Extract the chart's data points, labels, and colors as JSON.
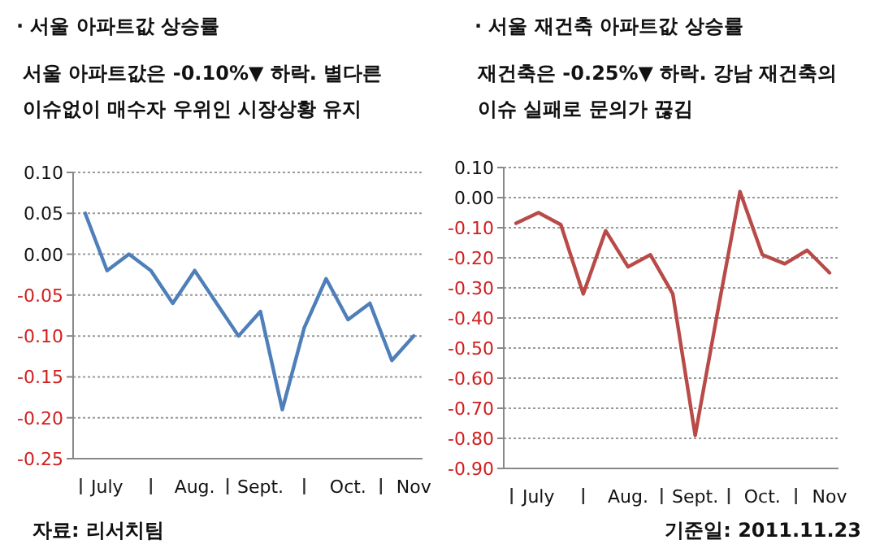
{
  "chart_data": [
    {
      "type": "line",
      "title": "· 서울 아파트값 상승률",
      "subtitle": "서울 아파트값은  -0.10%▼ 하락. 별다른 이슈없이 매수자 우위인 시장상황 유지",
      "annotations": [
        "자료: 리서치팀"
      ],
      "categories": [
        null,
        "July",
        null,
        null,
        null,
        "Aug.",
        null,
        null,
        "Sept.",
        null,
        null,
        null,
        "Oct.",
        null,
        null,
        "Nov"
      ],
      "series": [
        {
          "color": "#4f7fb8",
          "values": [
            0.05,
            -0.02,
            0.0,
            -0.02,
            -0.06,
            -0.02,
            -0.06,
            -0.1,
            -0.07,
            -0.19,
            -0.09,
            -0.03,
            -0.08,
            -0.06,
            -0.13,
            -0.1
          ]
        }
      ],
      "ylim": [
        -0.25,
        0.1
      ],
      "yticks": [
        {
          "value": 0.1,
          "label": "0.10"
        },
        {
          "value": 0.05,
          "label": "0.05"
        },
        {
          "value": 0,
          "label": "0.00"
        },
        {
          "value": -0.05,
          "label": "-0.05"
        },
        {
          "value": -0.1,
          "label": "-0.10"
        },
        {
          "value": -0.15,
          "label": "-0.15"
        },
        {
          "value": -0.2,
          "label": "-0.20"
        },
        {
          "value": -0.25,
          "label": "-0.25"
        }
      ],
      "grid": "y"
    },
    {
      "type": "line",
      "title": "· 서울 재건축 아파트값 상승률",
      "subtitle": "재건축은  -0.25%▼ 하락. 강남 재건축의 이슈 실패로 문의가 끊김",
      "annotations": [
        "기준일: 2011.11.23"
      ],
      "categories": [
        null,
        "July",
        null,
        null,
        null,
        "Aug.",
        null,
        null,
        "Sept.",
        null,
        null,
        "Oct.",
        null,
        null,
        "Nov"
      ],
      "series": [
        {
          "color": "#b84a48",
          "values": [
            -0.085,
            -0.05,
            -0.09,
            -0.32,
            -0.11,
            -0.23,
            -0.19,
            -0.32,
            -0.79,
            -0.38,
            0.02,
            -0.19,
            -0.22,
            -0.175,
            -0.25
          ]
        }
      ],
      "ylim": [
        -0.9,
        0.1
      ],
      "yticks": [
        {
          "value": 0.1,
          "label": "0.10"
        },
        {
          "value": 0,
          "label": "0.00"
        },
        {
          "value": -0.1,
          "label": "-0.10"
        },
        {
          "value": -0.2,
          "label": "-0.20"
        },
        {
          "value": -0.3,
          "label": "-0.30"
        },
        {
          "value": -0.4,
          "label": "-0.40"
        },
        {
          "value": -0.5,
          "label": "-0.50"
        },
        {
          "value": -0.6,
          "label": "-0.60"
        },
        {
          "value": -0.7,
          "label": "-0.70"
        },
        {
          "value": -0.8,
          "label": "-0.80"
        },
        {
          "value": -0.9,
          "label": "-0.90"
        }
      ],
      "grid": "y"
    }
  ]
}
